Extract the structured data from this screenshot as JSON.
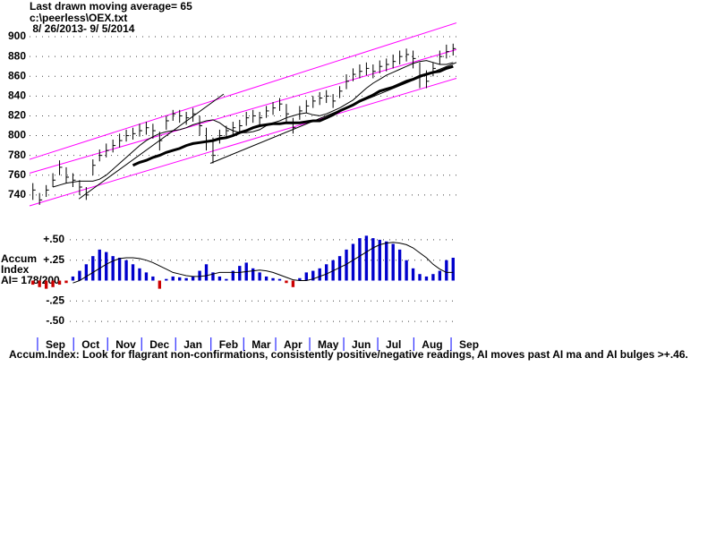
{
  "chart_data": [
    {
      "type": "ohlc",
      "title": "Last drawn moving average= 65",
      "subtitle": "c:\\peerless\\OEX.txt",
      "date_range": " 8/ 26/2013- 9/ 5/2014",
      "xlim": [
        0,
        64
      ],
      "ylim": [
        729,
        910
      ],
      "yticks": [
        740,
        760,
        780,
        800,
        820,
        840,
        860,
        880,
        900
      ],
      "grid": true,
      "color": "#000000",
      "close": [
        745,
        735,
        745,
        755,
        768,
        758,
        755,
        748,
        740,
        770,
        780,
        785,
        790,
        795,
        800,
        802,
        805,
        808,
        805,
        795,
        815,
        822,
        820,
        818,
        822,
        810,
        795,
        780,
        800,
        805,
        808,
        810,
        818,
        820,
        818,
        825,
        828,
        832,
        822,
        808,
        825,
        830,
        835,
        838,
        840,
        835,
        845,
        855,
        862,
        865,
        868,
        865,
        870,
        872,
        875,
        880,
        882,
        878,
        860,
        855,
        868,
        880,
        885,
        888
      ],
      "high": [
        752,
        742,
        750,
        762,
        775,
        768,
        762,
        755,
        748,
        776,
        786,
        792,
        796,
        802,
        806,
        808,
        812,
        814,
        812,
        804,
        820,
        826,
        826,
        824,
        828,
        820,
        808,
        798,
        806,
        810,
        814,
        816,
        824,
        826,
        824,
        830,
        834,
        838,
        832,
        818,
        830,
        836,
        840,
        844,
        846,
        842,
        850,
        862,
        868,
        872,
        874,
        872,
        876,
        878,
        882,
        886,
        888,
        886,
        874,
        866,
        874,
        886,
        892,
        893
      ],
      "low": [
        735,
        730,
        738,
        748,
        760,
        752,
        748,
        740,
        735,
        760,
        774,
        778,
        783,
        788,
        794,
        796,
        799,
        801,
        797,
        785,
        806,
        815,
        813,
        811,
        814,
        800,
        785,
        772,
        792,
        798,
        801,
        803,
        810,
        813,
        811,
        818,
        821,
        825,
        814,
        802,
        816,
        823,
        828,
        831,
        833,
        828,
        838,
        847,
        855,
        858,
        861,
        858,
        863,
        865,
        868,
        872,
        875,
        868,
        848,
        848,
        860,
        872,
        878,
        881
      ],
      "series": [
        {
          "color": "#000000",
          "style": "thick",
          "values": [
            null,
            null,
            null,
            null,
            null,
            null,
            null,
            null,
            null,
            null,
            null,
            null,
            null,
            null,
            null,
            770,
            773,
            775,
            778,
            780,
            783,
            785,
            787,
            790,
            792,
            793,
            794,
            795,
            797,
            798,
            800,
            803,
            805,
            808,
            810,
            811,
            812,
            812,
            813,
            813,
            813,
            814,
            815,
            815,
            818,
            821,
            825,
            828,
            831,
            835,
            838,
            841,
            845,
            847,
            849,
            852,
            855,
            857,
            860,
            862,
            864,
            865,
            868,
            870
          ]
        },
        {
          "color": "#000000",
          "style": "thin",
          "values": [
            null,
            null,
            null,
            748,
            750,
            752,
            753,
            754,
            754,
            754,
            756,
            760,
            766,
            772,
            778,
            784,
            790,
            795,
            799,
            802,
            804,
            805,
            806,
            808,
            811,
            813,
            815,
            816,
            813,
            808,
            805,
            803,
            803,
            804,
            806,
            810,
            813,
            815,
            818,
            820,
            822,
            823,
            821,
            820,
            822,
            825,
            828,
            832,
            836,
            842,
            848,
            853,
            857,
            861,
            864,
            867,
            870,
            873,
            875,
            876,
            874,
            872,
            872,
            874
          ]
        }
      ],
      "trendlines": [
        {
          "color": "#ff00ff",
          "x": [
            0,
            64
          ],
          "values": [
            776,
            914
          ]
        },
        {
          "color": "#ff00ff",
          "x": [
            0,
            64
          ],
          "values": [
            762,
            887
          ]
        },
        {
          "color": "#ff00ff",
          "x": [
            0,
            64
          ],
          "values": [
            729,
            858
          ]
        },
        {
          "color": "#000000",
          "x": [
            7.4,
            29.1
          ],
          "values": [
            736,
            842
          ]
        },
        {
          "color": "#000000",
          "x": [
            27.1,
            64
          ],
          "values": [
            772,
            874
          ]
        }
      ]
    },
    {
      "type": "bar",
      "ylabel_lines": [
        "Accum",
        "Index"
      ],
      "ai_label": "AI= 178/200",
      "footer": "Accum.Index: Look for flagrant non-confirmations, consistently positive/negative readings, AI moves past AI ma and AI bulges >+.46.",
      "xlim": [
        0,
        64
      ],
      "xticks": [
        {
          "value": 1.2,
          "label": "Sep"
        },
        {
          "value": 6.6,
          "label": "Oct"
        },
        {
          "value": 11.7,
          "label": "Nov"
        },
        {
          "value": 16.8,
          "label": "Dec"
        },
        {
          "value": 21.9,
          "label": "Jan"
        },
        {
          "value": 27.2,
          "label": "Feb"
        },
        {
          "value": 32.1,
          "label": "Mar"
        },
        {
          "value": 36.9,
          "label": "Apr"
        },
        {
          "value": 42,
          "label": "May"
        },
        {
          "value": 47.1,
          "label": "Jun"
        },
        {
          "value": 52.2,
          "label": "Jul"
        },
        {
          "value": 57.6,
          "label": "Aug"
        },
        {
          "value": 63.2,
          "label": "Sep"
        }
      ],
      "ylim": [
        -0.565,
        0.565
      ],
      "yticks": [
        {
          "value": 0.5,
          "label": "+.50"
        },
        {
          "value": 0.25,
          "label": "+.25"
        },
        {
          "value": -0.25,
          "label": "-.25"
        },
        {
          "value": -0.5,
          "label": "-.50"
        }
      ],
      "grid": true,
      "color": "#0000cc",
      "negative_color": "#cc0000",
      "tick_color": "#0000ff",
      "values": [
        -0.05,
        -0.08,
        -0.1,
        -0.08,
        -0.05,
        -0.03,
        0.05,
        0.12,
        0.2,
        0.3,
        0.38,
        0.35,
        0.3,
        0.28,
        0.25,
        0.2,
        0.15,
        0.1,
        0.05,
        -0.1,
        0.02,
        0.05,
        0.04,
        0.03,
        0.05,
        0.12,
        0.2,
        0.1,
        0.05,
        0.02,
        0.12,
        0.18,
        0.22,
        0.15,
        0.1,
        0.05,
        0.03,
        0.02,
        -0.03,
        -0.08,
        0.03,
        0.1,
        0.12,
        0.15,
        0.2,
        0.25,
        0.3,
        0.38,
        0.45,
        0.52,
        0.55,
        0.52,
        0.5,
        0.48,
        0.45,
        0.38,
        0.25,
        0.15,
        0.08,
        0.05,
        0.08,
        0.12,
        0.25,
        0.28
      ],
      "ma": {
        "color": "#000000",
        "values": [
          null,
          null,
          null,
          null,
          null,
          null,
          -0.03,
          0.0,
          0.05,
          0.1,
          0.15,
          0.2,
          0.24,
          0.27,
          0.28,
          0.28,
          0.27,
          0.25,
          0.22,
          0.18,
          0.14,
          0.1,
          0.08,
          0.06,
          0.05,
          0.05,
          0.06,
          0.08,
          0.1,
          0.1,
          0.1,
          0.1,
          0.11,
          0.12,
          0.13,
          0.12,
          0.1,
          0.07,
          0.04,
          0.01,
          0.0,
          0.0,
          0.02,
          0.05,
          0.08,
          0.12,
          0.16,
          0.2,
          0.25,
          0.3,
          0.35,
          0.4,
          0.44,
          0.46,
          0.47,
          0.46,
          0.44,
          0.4,
          0.34,
          0.28,
          0.2,
          0.14,
          0.1,
          0.1
        ]
      }
    }
  ]
}
